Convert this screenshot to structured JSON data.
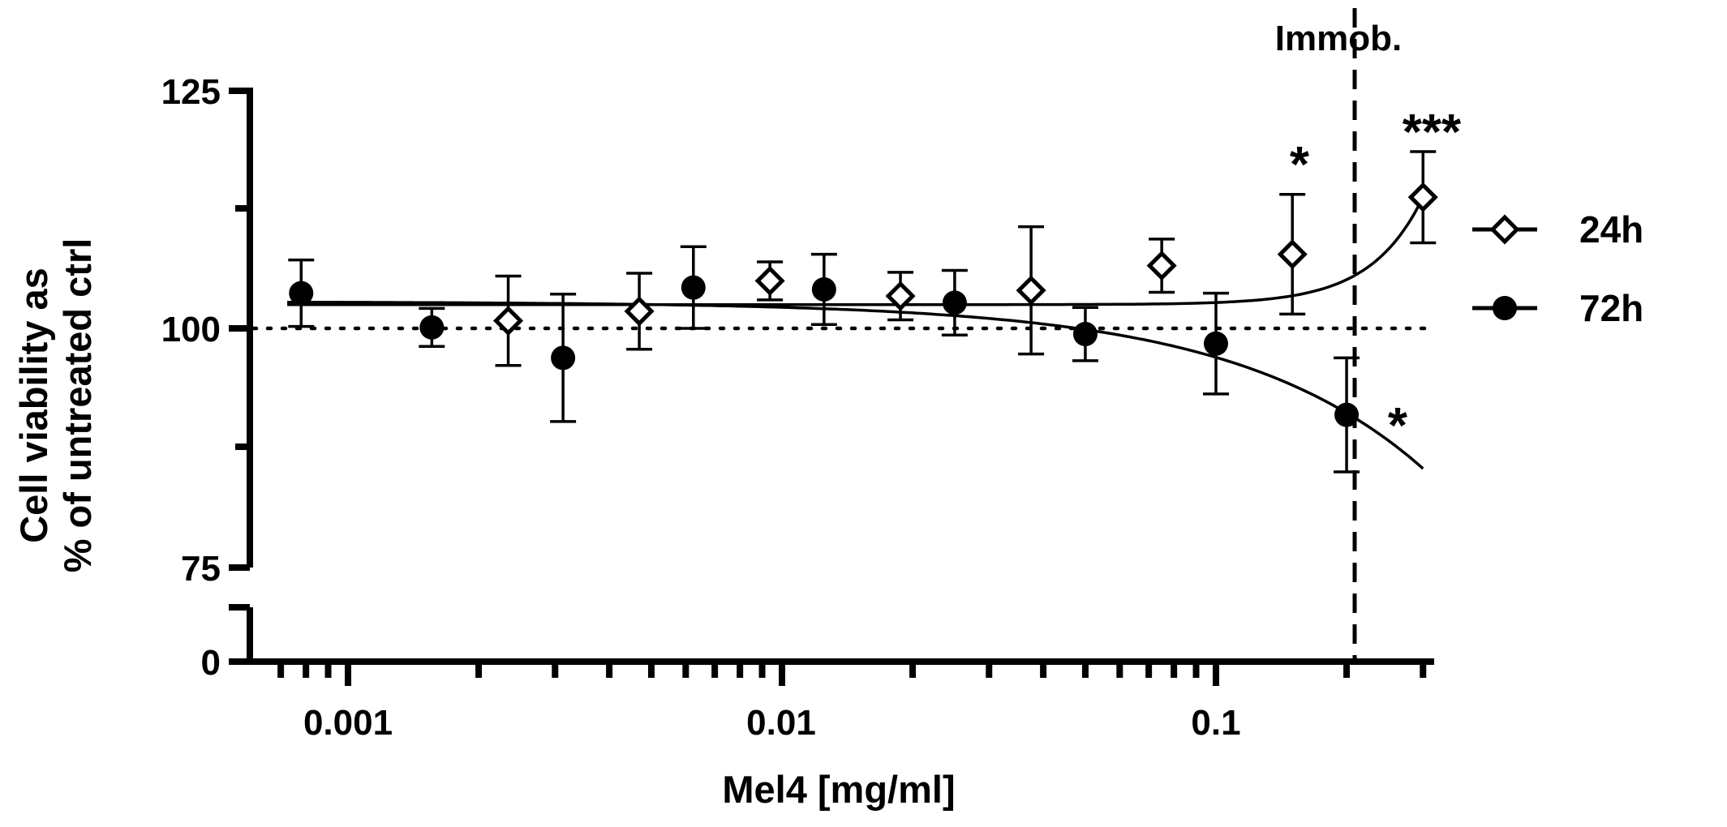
{
  "chart_data": {
    "type": "scatter",
    "title": "",
    "xlabel": "Mel4 [mg/ml]",
    "ylabel_lines": [
      "Cell viability as",
      "% of untreated ctrl"
    ],
    "x_scale": "log",
    "xlim": [
      0.00063,
      0.3
    ],
    "x_ticks": [
      0.001,
      0.01,
      0.1
    ],
    "x_tick_labels": [
      "0.001",
      "0.01",
      "0.1"
    ],
    "y_axis_break": {
      "lower_segment": [
        0,
        3
      ],
      "upper_segment": [
        75,
        125
      ]
    },
    "y_tick_labels": [
      "0",
      "75",
      "100",
      "125"
    ],
    "reference_line": {
      "y": 100,
      "style": "dotted"
    },
    "vertical_line": {
      "x": 0.2,
      "label": "Immob.",
      "style": "dashed"
    },
    "series": [
      {
        "name": "24h",
        "marker": "open-diamond",
        "points": [
          {
            "x": 0.00234,
            "y": 100.8,
            "err": 4.7
          },
          {
            "x": 0.00469,
            "y": 101.8,
            "err": 4.0
          },
          {
            "x": 0.00938,
            "y": 105.0,
            "err": 2.0
          },
          {
            "x": 0.01875,
            "y": 103.4,
            "err": 2.5
          },
          {
            "x": 0.0375,
            "y": 104.0,
            "err": 6.7
          },
          {
            "x": 0.075,
            "y": 106.6,
            "err": 2.8
          },
          {
            "x": 0.15,
            "y": 107.8,
            "err": 6.3
          },
          {
            "x": 0.3,
            "y": 113.8,
            "err": 4.8
          }
        ],
        "fit_curve": {
          "bottom": 102.5,
          "span": 11.3,
          "k": 3.6
        }
      },
      {
        "name": "72h",
        "marker": "filled-circle",
        "points": [
          {
            "x": 0.00078,
            "y": 103.7,
            "err": 3.5
          },
          {
            "x": 0.00156,
            "y": 100.1,
            "err": 2.0
          },
          {
            "x": 0.00313,
            "y": 96.9,
            "err": 6.7
          },
          {
            "x": 0.00625,
            "y": 104.3,
            "err": 4.3
          },
          {
            "x": 0.0125,
            "y": 104.1,
            "err": 3.7
          },
          {
            "x": 0.025,
            "y": 102.7,
            "err": 3.4
          },
          {
            "x": 0.05,
            "y": 99.4,
            "err": 2.8
          },
          {
            "x": 0.1,
            "y": 98.4,
            "err": 5.3
          },
          {
            "x": 0.2,
            "y": 90.9,
            "err": 6.0
          }
        ],
        "fit_curve": {
          "top": 102.8,
          "slope": 58.5
        }
      }
    ],
    "annotations": [
      {
        "text": "*",
        "x": 0.15,
        "y": 116.8
      },
      {
        "text": "***",
        "x": 0.3,
        "y": 120.5
      },
      {
        "text": "*",
        "x": 0.2,
        "y": 90.2
      }
    ],
    "legend": {
      "position": "right",
      "entries": [
        "24h",
        "72h"
      ]
    }
  }
}
